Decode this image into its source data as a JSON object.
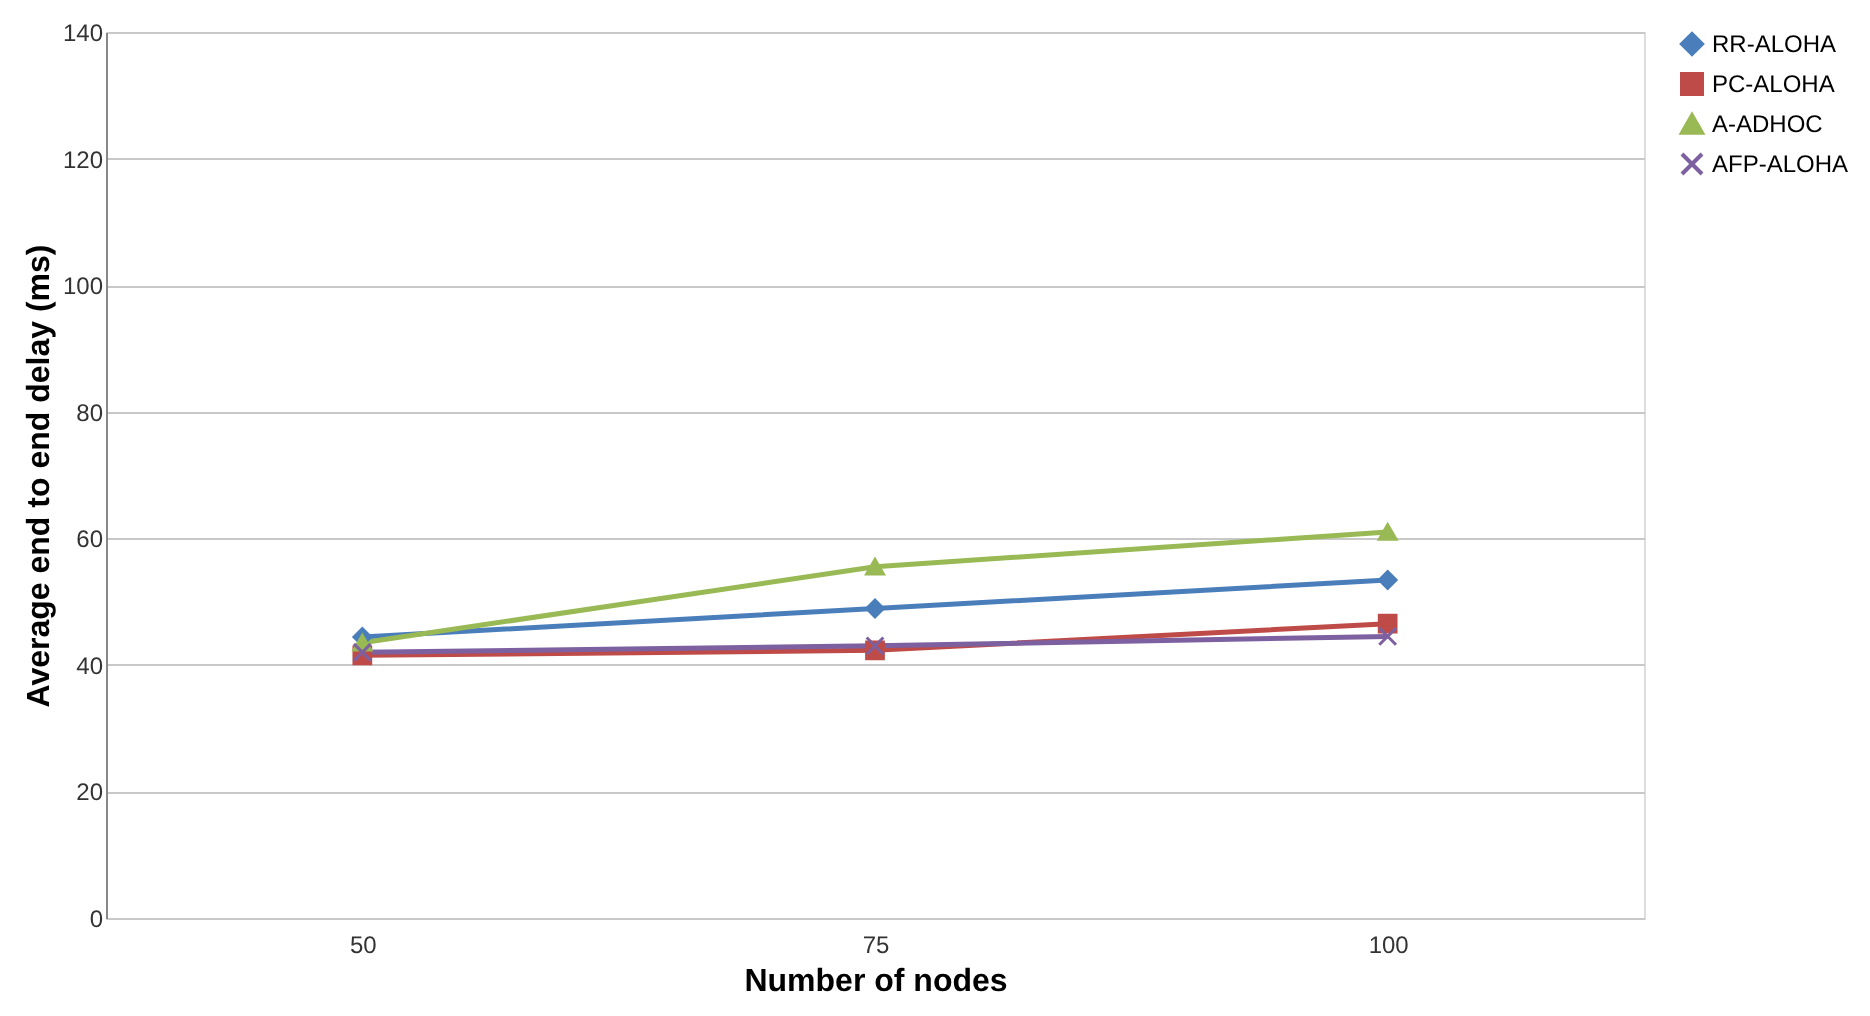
{
  "chart_data": {
    "type": "line",
    "xlabel": "Number of nodes",
    "ylabel": "Average end to end delay (ms)",
    "categories": [
      "50",
      "75",
      "100"
    ],
    "series": [
      {
        "name": "RR-ALOHA",
        "color": "#4a7ebb",
        "marker": "diamond",
        "values": [
          44.4,
          48.9,
          53.4
        ]
      },
      {
        "name": "PC-ALOHA",
        "color": "#be4b48",
        "marker": "square",
        "values": [
          41.5,
          42.3,
          46.5
        ]
      },
      {
        "name": "A-ADHOC",
        "color": "#98b954",
        "marker": "triangle",
        "values": [
          43.5,
          55.5,
          61
        ]
      },
      {
        "name": "AFP-ALOHA",
        "color": "#7d60a0",
        "marker": "cross",
        "values": [
          42,
          43,
          44.5
        ]
      }
    ],
    "ylim": [
      0,
      140
    ],
    "yticks": [
      0,
      20,
      40,
      60,
      80,
      100,
      120,
      140
    ],
    "grid": "y",
    "legend": "right",
    "line_style": "solid"
  }
}
